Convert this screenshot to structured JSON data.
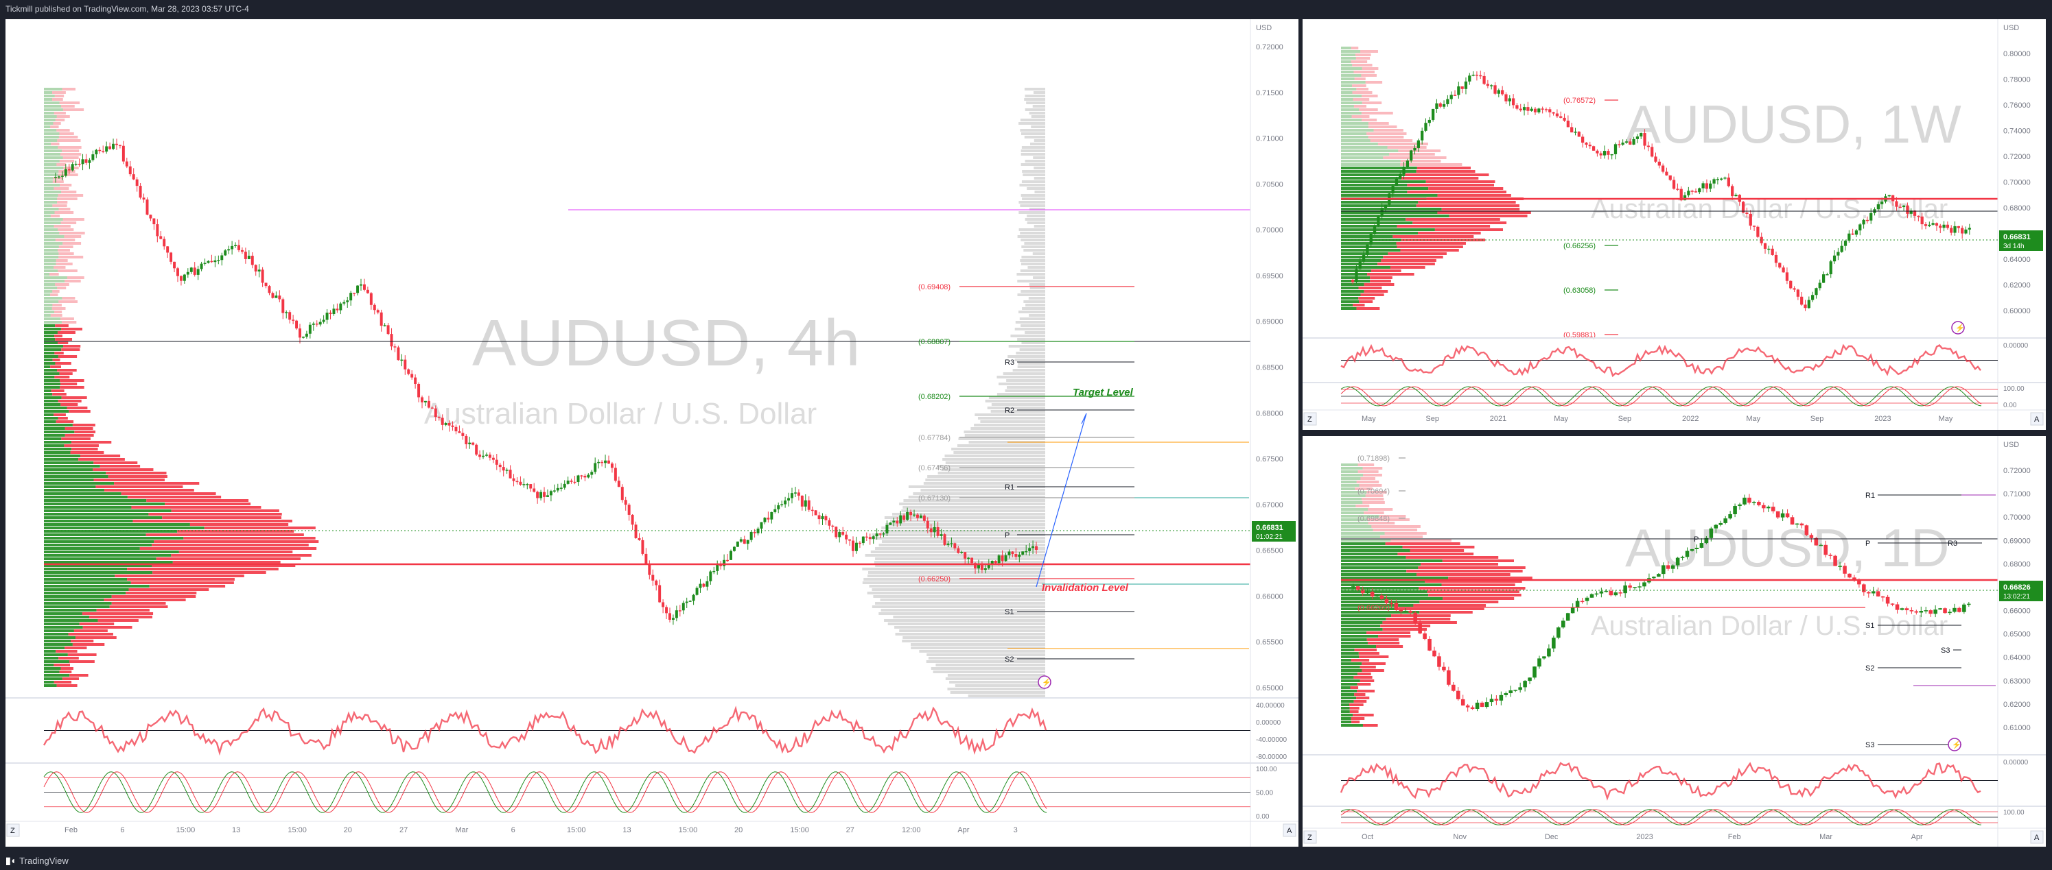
{
  "header": {
    "publisher": "Tickmill published on TradingView.com, Mar 28, 2023 03:57 UTC-4"
  },
  "footer": {
    "brand": "TradingView"
  },
  "colors": {
    "up": "#1e8c1e",
    "down": "#f23645",
    "bg": "#ffffff",
    "frame": "#1e222d",
    "accent": "#2962ff"
  },
  "panels": [
    {
      "id": "p1",
      "watermark": "AUDUSD, 4h",
      "subtitle": "Australian Dollar / U.S. Dollar",
      "currency": "USD",
      "price_badge": {
        "price": "0.66831",
        "countdown": "01:02:21"
      },
      "y_ticks": [
        "0.72000",
        "0.71500",
        "0.71000",
        "0.70500",
        "0.70000",
        "0.69500",
        "0.69000",
        "0.68500",
        "0.68000",
        "0.67500",
        "0.67000",
        "0.66500",
        "0.66000",
        "0.65500",
        "0.65000"
      ],
      "x_ticks": [
        "Feb",
        "6",
        "15:00",
        "13",
        "15:00",
        "20",
        "27",
        "Mar",
        "6",
        "15:00",
        "13",
        "15:00",
        "20",
        "15:00",
        "27",
        "12:00",
        "Apr",
        "3"
      ],
      "fib_labels": [
        {
          "text": "(0.69408)",
          "color": "#f23645"
        },
        {
          "text": "(0.68807)",
          "color": "#1e8c1e"
        },
        {
          "text": "(0.68202)",
          "color": "#1e8c1e"
        },
        {
          "text": "(0.67784)",
          "color": "#9e9e9e"
        },
        {
          "text": "(0.67456)",
          "color": "#9e9e9e"
        },
        {
          "text": "(0.67130)",
          "color": "#9e9e9e"
        },
        {
          "text": "(0.66250)",
          "color": "#f23645"
        }
      ],
      "pivot_labels": [
        "R3",
        "R2",
        "R1",
        "P",
        "S1",
        "S2"
      ],
      "annotations": {
        "target": "Target Level",
        "invalidation": "Invalidation Level"
      },
      "osc1_ticks": [
        "40.00000",
        "0.00000",
        "-40.00000",
        "-80.00000"
      ],
      "osc2_ticks": [
        "100.00",
        "50.00",
        "0.00"
      ],
      "corner_z": "Z",
      "corner_a": "A"
    },
    {
      "id": "p2",
      "watermark": "AUDUSD, 1W",
      "subtitle": "Australian Dollar / U.S. Dollar",
      "currency": "USD",
      "price_badge": {
        "price": "0.66831",
        "countdown": "3d 14h"
      },
      "y_ticks": [
        "0.80000",
        "0.78000",
        "0.76000",
        "0.74000",
        "0.72000",
        "0.70000",
        "0.68000",
        "0.66000",
        "0.64000",
        "0.62000",
        "0.60000"
      ],
      "x_ticks": [
        "May",
        "Sep",
        "2021",
        "May",
        "Sep",
        "2022",
        "May",
        "Sep",
        "2023",
        "May"
      ],
      "fib_labels": [
        {
          "text": "(0.76572)",
          "color": "#f23645"
        },
        {
          "text": "(0.66256)",
          "color": "#1e8c1e"
        },
        {
          "text": "(0.63058)",
          "color": "#1e8c1e"
        },
        {
          "text": "(0.59881)",
          "color": "#f23645"
        }
      ],
      "osc1_ticks": [
        "0.00000"
      ],
      "osc2_ticks": [
        "100.00",
        "0.00"
      ],
      "corner_z": "Z",
      "corner_a": "A"
    },
    {
      "id": "p3",
      "watermark": "AUDUSD, 1D",
      "subtitle": "Australian Dollar / U.S. Dollar",
      "currency": "USD",
      "price_badge": {
        "price": "0.66826",
        "countdown": "13:02:21"
      },
      "y_ticks": [
        "0.72000",
        "0.71000",
        "0.70000",
        "0.69000",
        "0.68000",
        "0.67000",
        "0.66000",
        "0.65000",
        "0.64000",
        "0.63000",
        "0.62000",
        "0.61000"
      ],
      "x_ticks": [
        "Oct",
        "Nov",
        "Dec",
        "2023",
        "Feb",
        "Mar",
        "Apr"
      ],
      "fib_labels": [
        {
          "text": "(0.71898)",
          "color": "#9e9e9e"
        },
        {
          "text": "(0.70694)",
          "color": "#9e9e9e"
        },
        {
          "text": "(0.69848)",
          "color": "#9e9e9e"
        },
        {
          "text": "(0.66265)",
          "color": "#f23645"
        }
      ],
      "pivot_labels": [
        "R1",
        "P",
        "S1",
        "S2",
        "S3",
        "S3",
        "P",
        "R3"
      ],
      "osc1_ticks": [
        "0.00000"
      ],
      "osc2_ticks": [
        "100.00"
      ],
      "corner_z": "Z",
      "corner_a": "A"
    }
  ]
}
